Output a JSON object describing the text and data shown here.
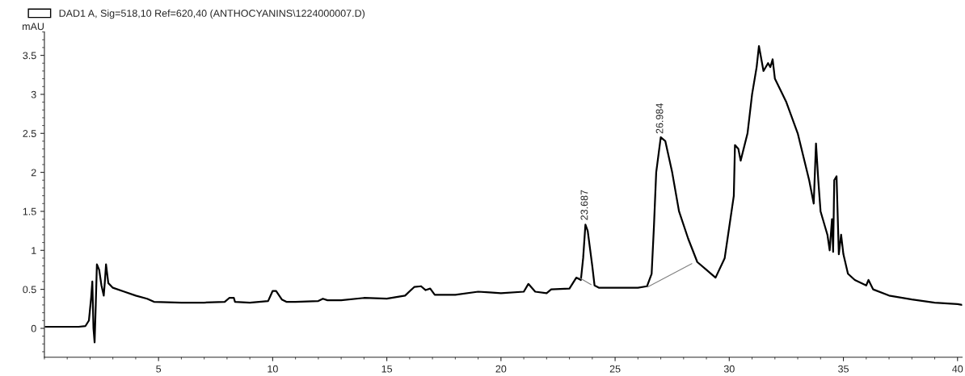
{
  "chart_data": {
    "type": "line",
    "ylabel": "mAU",
    "legend": "top left",
    "grid": false,
    "xlim": [
      0,
      40.2
    ],
    "ylim": [
      -0.37,
      3.8
    ],
    "xticks": [
      5,
      10,
      15,
      20,
      25,
      30,
      35,
      40
    ],
    "yticks": [
      0,
      0.5,
      1,
      1.5,
      2,
      2.5,
      3,
      3.5
    ],
    "annotations": [
      {
        "text": "23.687",
        "x": 23.687,
        "y": 1.34
      },
      {
        "text": "26.984",
        "x": 26.984,
        "y": 2.45
      }
    ],
    "series": [
      {
        "name": "DAD1 A, Sig=518,10 Ref=620,40 (ANTHOCYANINS\\1224000007.D)",
        "color": "#000000",
        "x": [
          0.05,
          1.5,
          1.8,
          1.95,
          2.0,
          2.05,
          2.1,
          2.15,
          2.2,
          2.25,
          2.3,
          2.4,
          2.5,
          2.6,
          2.65,
          2.7,
          2.8,
          3,
          3.5,
          4,
          4.5,
          4.8,
          6,
          7,
          7.9,
          8.1,
          8.3,
          8.35,
          9,
          9.8,
          10.0,
          10.15,
          10.4,
          10.6,
          11,
          12,
          12.2,
          12.4,
          13,
          14,
          15,
          15.8,
          16.2,
          16.5,
          16.7,
          16.9,
          17.1,
          18,
          19,
          19.5,
          20,
          21,
          21.2,
          21.5,
          22,
          22.2,
          23,
          23.3,
          23.5,
          23.6,
          23.7,
          23.8,
          24.0,
          24.1,
          24.3,
          25,
          26,
          26.4,
          26.6,
          26.7,
          26.8,
          27.0,
          27.2,
          27.5,
          27.8,
          28.2,
          28.6,
          29,
          29.4,
          29.8,
          30.0,
          30.2,
          30.25,
          30.4,
          30.5,
          30.8,
          31.0,
          31.2,
          31.3,
          31.5,
          31.7,
          31.8,
          31.9,
          32.0,
          32.5,
          33,
          33.5,
          33.7,
          33.8,
          33.9,
          34.0,
          34.3,
          34.4,
          34.5,
          34.55,
          34.6,
          34.7,
          34.8,
          34.9,
          35.0,
          35.2,
          35.5,
          36.0,
          36.1,
          36.3,
          37,
          38,
          39,
          40,
          40.2
        ],
        "values": [
          0.02,
          0.02,
          0.03,
          0.1,
          0.25,
          0.4,
          0.6,
          0.0,
          -0.18,
          0.3,
          0.82,
          0.75,
          0.55,
          0.42,
          0.6,
          0.82,
          0.58,
          0.52,
          0.47,
          0.42,
          0.38,
          0.34,
          0.33,
          0.33,
          0.34,
          0.39,
          0.39,
          0.34,
          0.33,
          0.35,
          0.48,
          0.48,
          0.37,
          0.34,
          0.34,
          0.35,
          0.38,
          0.36,
          0.36,
          0.39,
          0.38,
          0.42,
          0.53,
          0.54,
          0.49,
          0.51,
          0.43,
          0.43,
          0.47,
          0.46,
          0.45,
          0.47,
          0.57,
          0.47,
          0.45,
          0.5,
          0.51,
          0.65,
          0.62,
          0.9,
          1.33,
          1.25,
          0.8,
          0.55,
          0.52,
          0.52,
          0.52,
          0.54,
          0.7,
          1.3,
          2.0,
          2.45,
          2.4,
          2.0,
          1.5,
          1.15,
          0.85,
          0.75,
          0.65,
          0.9,
          1.3,
          1.7,
          2.35,
          2.3,
          2.15,
          2.5,
          3.0,
          3.35,
          3.62,
          3.3,
          3.4,
          3.35,
          3.45,
          3.2,
          2.9,
          2.5,
          1.9,
          1.6,
          2.37,
          1.9,
          1.5,
          1.2,
          1.0,
          1.4,
          0.98,
          1.9,
          1.95,
          0.95,
          1.2,
          0.95,
          0.7,
          0.62,
          0.55,
          0.62,
          0.5,
          0.42,
          0.37,
          0.33,
          0.31,
          0.3
        ]
      },
      {
        "color": "#808080",
        "x": [
          23.42,
          23.95
        ],
        "values": [
          0.65,
          0.56
        ]
      },
      {
        "color": "#808080",
        "x": [
          26.42,
          28.36
        ],
        "values": [
          0.53,
          0.83
        ]
      }
    ]
  }
}
